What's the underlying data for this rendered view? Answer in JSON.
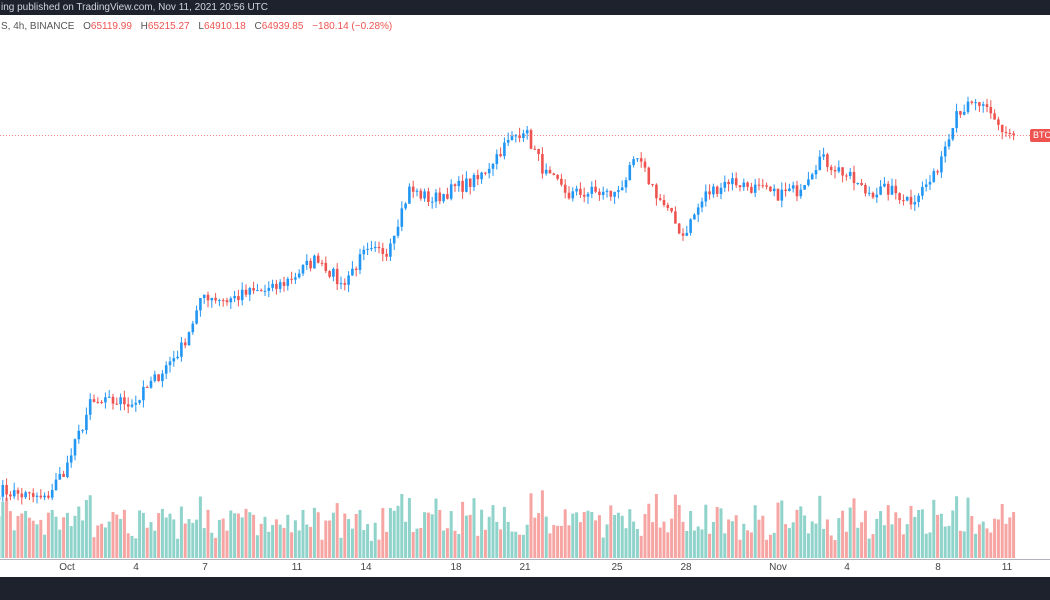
{
  "header": {
    "published_text": "ing published on TradingView.com, Nov 11, 2021 20:56 UTC"
  },
  "legend": {
    "symbol_text": "S, 4h, BINANCE",
    "open_label": "O",
    "open": "65119.99",
    "high_label": "H",
    "high": "65215.27",
    "low_label": "L",
    "low": "64910.18",
    "close_label": "C",
    "close": "64939.85",
    "change": "−180.14 (−0.28%)"
  },
  "price_label": "BTC",
  "colors": {
    "up": "#2196f3",
    "down": "#ef5350",
    "vol_up": "#8fd3cb",
    "vol_down": "#f6a5a3",
    "bg_dark": "#1e222d"
  },
  "chart_data": {
    "type": "candlestick",
    "interval": "4h",
    "exchange": "BINANCE",
    "last_price": 64939.85,
    "grid": false,
    "x_ticks": [
      "Oct",
      "4",
      "7",
      "11",
      "14",
      "18",
      "21",
      "25",
      "28",
      "Nov",
      "4",
      "8",
      "11"
    ],
    "daily_closes": [
      [
        "Sep 28",
        41550
      ],
      [
        "Sep 29",
        41220
      ],
      [
        "Sep 30",
        40890
      ],
      [
        "Oct 1",
        43190
      ],
      [
        "Oct 2",
        47150
      ],
      [
        "Oct 3",
        47350
      ],
      [
        "Oct 4",
        47350
      ],
      [
        "Oct 5",
        49120
      ],
      [
        "Oct 6",
        50900
      ],
      [
        "Oct 7",
        54400
      ],
      [
        "Oct 8",
        54070
      ],
      [
        "Oct 9",
        54530
      ],
      [
        "Oct 10",
        54730
      ],
      [
        "Oct 11",
        55710
      ],
      [
        "Oct 12",
        56900
      ],
      [
        "Oct 13",
        55060
      ],
      [
        "Oct 14",
        57030
      ],
      [
        "Oct 15",
        57360
      ],
      [
        "Oct 16",
        61320
      ],
      [
        "Oct 17",
        60660
      ],
      [
        "Oct 18",
        61450
      ],
      [
        "Oct 19",
        61970
      ],
      [
        "Oct 20",
        63950
      ],
      [
        "Oct 21",
        65400
      ],
      [
        "Oct 22",
        62300
      ],
      [
        "Oct 23",
        60990
      ],
      [
        "Oct 24",
        61180
      ],
      [
        "Oct 25",
        60990
      ],
      [
        "Oct 26",
        63290
      ],
      [
        "Oct 27",
        60660
      ],
      [
        "Oct 28",
        58350
      ],
      [
        "Oct 29",
        60990
      ],
      [
        "Oct 30",
        61970
      ],
      [
        "Oct 31",
        61510
      ],
      [
        "Nov 1",
        60990
      ],
      [
        "Nov 2",
        61320
      ],
      [
        "Nov 3",
        63420
      ],
      [
        "Nov 4",
        62500
      ],
      [
        "Nov 5",
        61180
      ],
      [
        "Nov 6",
        61320
      ],
      [
        "Nov 7",
        60660
      ],
      [
        "Nov 8",
        62110
      ],
      [
        "Nov 9",
        66590
      ],
      [
        "Nov 10",
        66920
      ],
      [
        "Nov 11",
        65270
      ],
      [
        "Nov 11 12:00",
        64940
      ]
    ]
  }
}
